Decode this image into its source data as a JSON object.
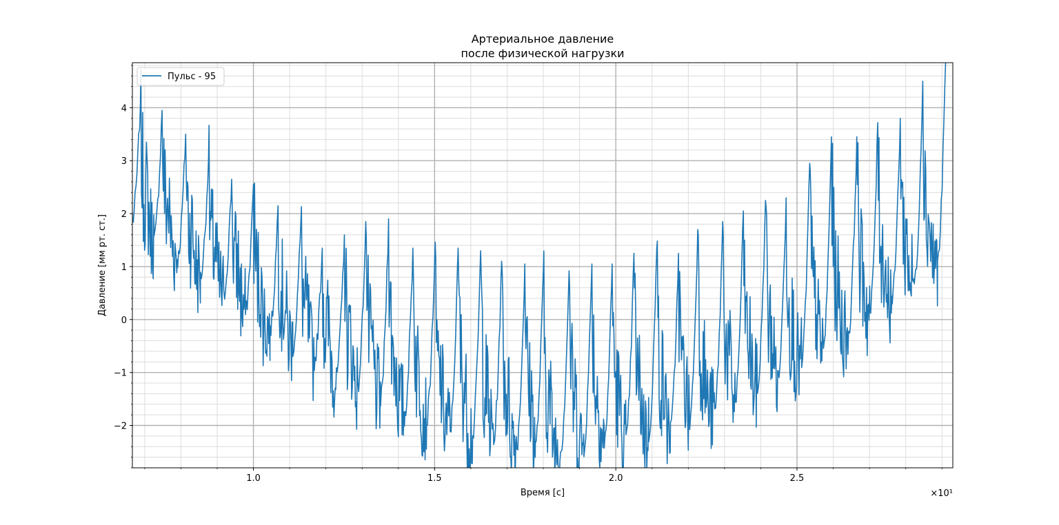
{
  "chart_data": {
    "type": "line",
    "title_line1": "Артериальное давление",
    "title_line2": "после физической нагрузки",
    "xlabel": "Время [с]",
    "ylabel": "Давление [мм рт. ст.]",
    "x_offset_text": "×10¹",
    "xlim": [
      0.666,
      2.93
    ],
    "ylim": [
      -2.8,
      4.85
    ],
    "x_ticks": [
      1.0,
      1.5,
      2.0,
      2.5
    ],
    "x_tick_labels": [
      "1.0",
      "1.5",
      "2.0",
      "2.5"
    ],
    "y_ticks": [
      -2,
      -1,
      0,
      1,
      2,
      3,
      4
    ],
    "y_tick_labels": [
      "−2",
      "−1",
      "0",
      "1",
      "2",
      "3",
      "4"
    ],
    "grid": "major and minor",
    "legend_position": "upper left",
    "series": [
      {
        "name": "Пульс - 95",
        "color": "#1f77b4",
        "beat_period": 0.0632,
        "peaks": [
          [
            0.688,
            4.05
          ],
          [
            0.748,
            3.95
          ],
          [
            0.813,
            3.5
          ],
          [
            0.876,
            3.02
          ],
          [
            0.94,
            2.65
          ],
          [
            1.0,
            2.55
          ],
          [
            1.068,
            2.15
          ],
          [
            1.131,
            1.85
          ],
          [
            1.19,
            1.35
          ],
          [
            1.251,
            1.6
          ],
          [
            1.31,
            1.85
          ],
          [
            1.373,
            1.9
          ],
          [
            1.44,
            1.35
          ],
          [
            1.5,
            1.1
          ],
          [
            1.565,
            1.35
          ],
          [
            1.627,
            1.3
          ],
          [
            1.685,
            1.1
          ],
          [
            1.749,
            1.05
          ],
          [
            1.8,
            0.95
          ],
          [
            1.871,
            0.92
          ],
          [
            1.934,
            1.05
          ],
          [
            1.99,
            1.05
          ],
          [
            2.05,
            1.25
          ],
          [
            2.113,
            1.35
          ],
          [
            2.173,
            1.25
          ],
          [
            2.226,
            1.7
          ],
          [
            2.295,
            1.85
          ],
          [
            2.352,
            2.05
          ],
          [
            2.413,
            2.25
          ],
          [
            2.47,
            2.3
          ],
          [
            2.535,
            2.95
          ],
          [
            2.595,
            3.45
          ],
          [
            2.665,
            3.45
          ],
          [
            2.723,
            3.72
          ],
          [
            2.785,
            3.8
          ],
          [
            2.847,
            4.5
          ],
          [
            2.91,
            4.85
          ]
        ],
        "baseline_start": [
          0.666,
          2.0
        ],
        "baseline_trough": [
          1.85,
          -2.3
        ],
        "baseline_end": [
          2.93,
          1.4
        ]
      }
    ]
  }
}
